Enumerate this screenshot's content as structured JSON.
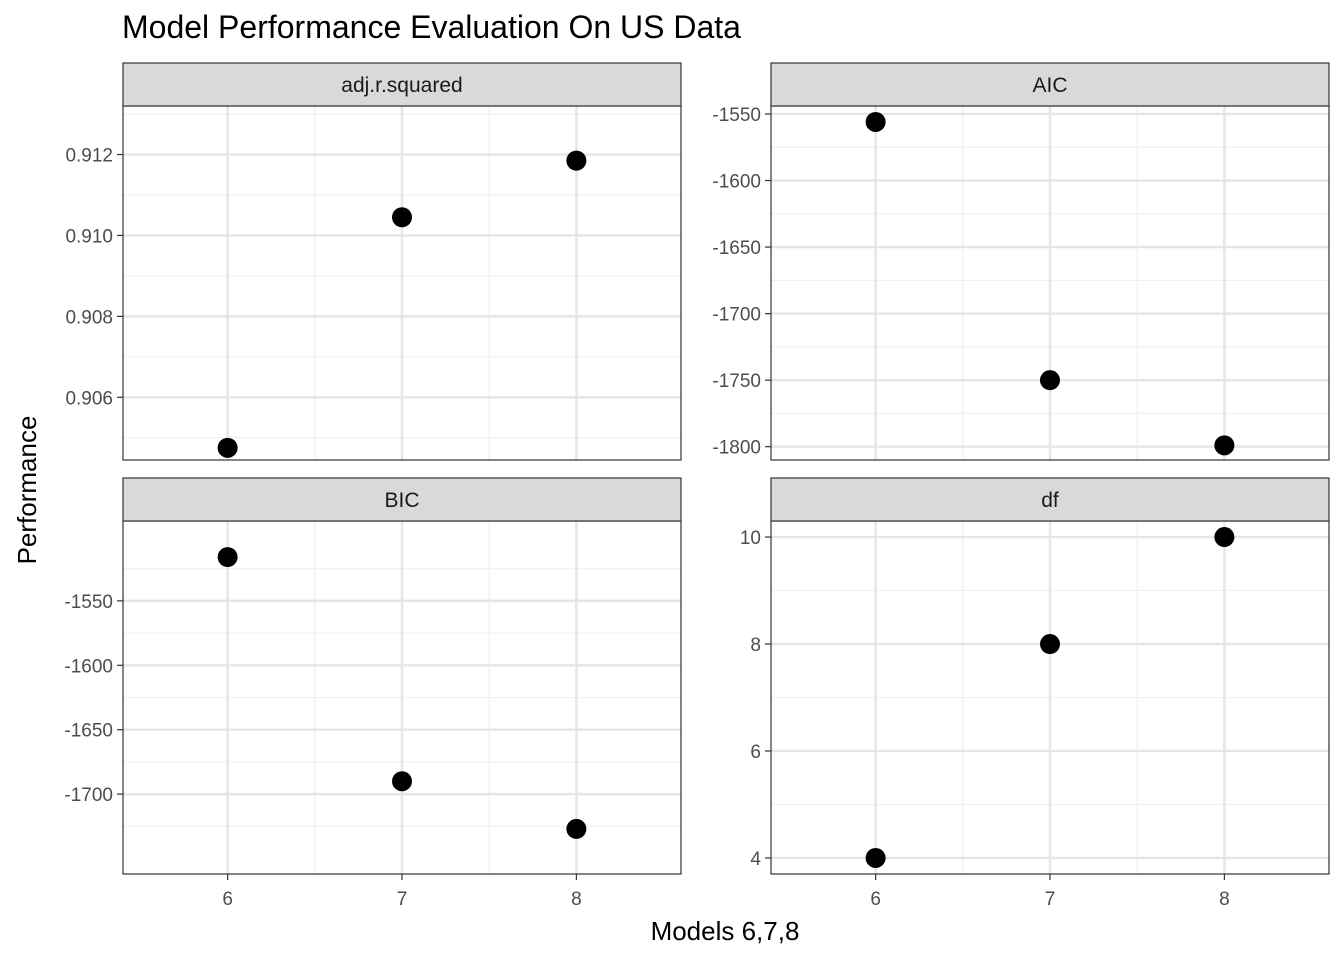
{
  "chart_data": {
    "type": "scatter",
    "title": "Model Performance Evaluation On US Data",
    "xlabel": "Models 6,7,8",
    "ylabel": "Performance",
    "x_ticks": [
      "6",
      "7",
      "8"
    ],
    "grid": true,
    "point_color": "#000000",
    "strip_fill": "#d9d9d9",
    "panels": [
      {
        "name": "adj.r.squared",
        "x": [
          6,
          7,
          8
        ],
        "y": [
          0.90475,
          0.91045,
          0.91185
        ],
        "ylim": [
          0.90445,
          0.9132
        ],
        "y_ticks": [
          {
            "value": 0.906,
            "label": "0.906"
          },
          {
            "value": 0.908,
            "label": "0.908"
          },
          {
            "value": 0.91,
            "label": "0.910"
          },
          {
            "value": 0.912,
            "label": "0.912"
          }
        ]
      },
      {
        "name": "AIC",
        "x": [
          6,
          7,
          8
        ],
        "y": [
          -1556,
          -1750,
          -1799
        ],
        "ylim": [
          -1810,
          -1544
        ],
        "y_ticks": [
          {
            "value": -1800,
            "label": "-1800"
          },
          {
            "value": -1750,
            "label": "-1750"
          },
          {
            "value": -1700,
            "label": "-1700"
          },
          {
            "value": -1650,
            "label": "-1650"
          },
          {
            "value": -1600,
            "label": "-1600"
          },
          {
            "value": -1550,
            "label": "-1550"
          }
        ]
      },
      {
        "name": "BIC",
        "x": [
          6,
          7,
          8
        ],
        "y": [
          -1516,
          -1690,
          -1727
        ],
        "ylim": [
          -1762,
          -1488
        ],
        "y_ticks": [
          {
            "value": -1700,
            "label": "-1700"
          },
          {
            "value": -1650,
            "label": "-1650"
          },
          {
            "value": -1600,
            "label": "-1600"
          },
          {
            "value": -1550,
            "label": "-1550"
          }
        ]
      },
      {
        "name": "df",
        "x": [
          6,
          7,
          8
        ],
        "y": [
          4,
          8,
          10
        ],
        "ylim": [
          3.7,
          10.3
        ],
        "y_ticks": [
          {
            "value": 4,
            "label": "4"
          },
          {
            "value": 6,
            "label": "6"
          },
          {
            "value": 8,
            "label": "8"
          },
          {
            "value": 10,
            "label": "10"
          }
        ]
      }
    ]
  }
}
